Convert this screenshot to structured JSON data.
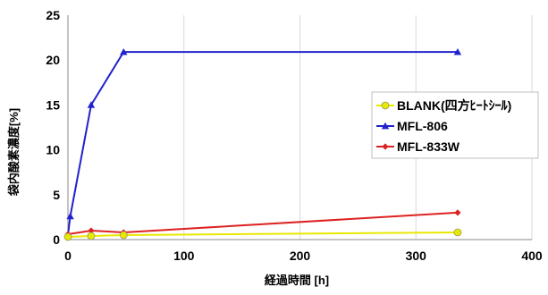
{
  "chart_data": {
    "type": "line",
    "xlabel": "経過時間 [h]",
    "ylabel": "袋内酸素濃度[%]",
    "xlim": [
      0,
      400
    ],
    "ylim": [
      0,
      25
    ],
    "xticks": [
      0,
      100,
      200,
      300,
      400
    ],
    "yticks": [
      0,
      5,
      10,
      15,
      20,
      25
    ],
    "grid": "vertical",
    "legend_position": "right",
    "series": [
      {
        "name": "BLANK(四方ﾋｰﾄｼｰﾙ)",
        "color": "#e8e800",
        "marker": "circle",
        "x": [
          0,
          20,
          48,
          336
        ],
        "y": [
          0.3,
          0.4,
          0.5,
          0.8
        ]
      },
      {
        "name": "MFL-806",
        "color": "#2222cc",
        "marker": "triangle",
        "x": [
          0,
          2,
          20,
          48,
          336
        ],
        "y": [
          0.5,
          2.6,
          15.0,
          20.9,
          20.9
        ]
      },
      {
        "name": "MFL-833W",
        "color": "#dd2222",
        "marker": "diamond",
        "x": [
          0,
          20,
          48,
          336
        ],
        "y": [
          0.6,
          1.0,
          0.8,
          3.0
        ]
      }
    ]
  }
}
